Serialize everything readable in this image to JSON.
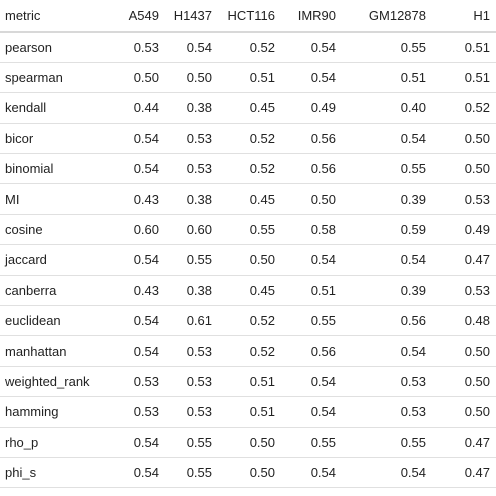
{
  "table": {
    "headers": [
      "metric",
      "A549",
      "H1437",
      "HCT116",
      "IMR90",
      "GM12878",
      "H1"
    ],
    "rows": [
      [
        "pearson",
        "0.53",
        "0.54",
        "0.52",
        "0.54",
        "0.55",
        "0.51"
      ],
      [
        "spearman",
        "0.50",
        "0.50",
        "0.51",
        "0.54",
        "0.51",
        "0.51"
      ],
      [
        "kendall",
        "0.44",
        "0.38",
        "0.45",
        "0.49",
        "0.40",
        "0.52"
      ],
      [
        "bicor",
        "0.54",
        "0.53",
        "0.52",
        "0.56",
        "0.54",
        "0.50"
      ],
      [
        "binomial",
        "0.54",
        "0.53",
        "0.52",
        "0.56",
        "0.55",
        "0.50"
      ],
      [
        "MI",
        "0.43",
        "0.38",
        "0.45",
        "0.50",
        "0.39",
        "0.53"
      ],
      [
        "cosine",
        "0.60",
        "0.60",
        "0.55",
        "0.58",
        "0.59",
        "0.49"
      ],
      [
        "jaccard",
        "0.54",
        "0.55",
        "0.50",
        "0.54",
        "0.54",
        "0.47"
      ],
      [
        "canberra",
        "0.43",
        "0.38",
        "0.45",
        "0.51",
        "0.39",
        "0.53"
      ],
      [
        "euclidean",
        "0.54",
        "0.61",
        "0.52",
        "0.55",
        "0.56",
        "0.48"
      ],
      [
        "manhattan",
        "0.54",
        "0.53",
        "0.52",
        "0.56",
        "0.54",
        "0.50"
      ],
      [
        "weighted_rank",
        "0.53",
        "0.53",
        "0.51",
        "0.54",
        "0.53",
        "0.50"
      ],
      [
        "hamming",
        "0.53",
        "0.53",
        "0.51",
        "0.54",
        "0.53",
        "0.50"
      ],
      [
        "rho_p",
        "0.54",
        "0.55",
        "0.50",
        "0.55",
        "0.55",
        "0.47"
      ],
      [
        "phi_s",
        "0.54",
        "0.55",
        "0.50",
        "0.54",
        "0.54",
        "0.47"
      ]
    ]
  }
}
